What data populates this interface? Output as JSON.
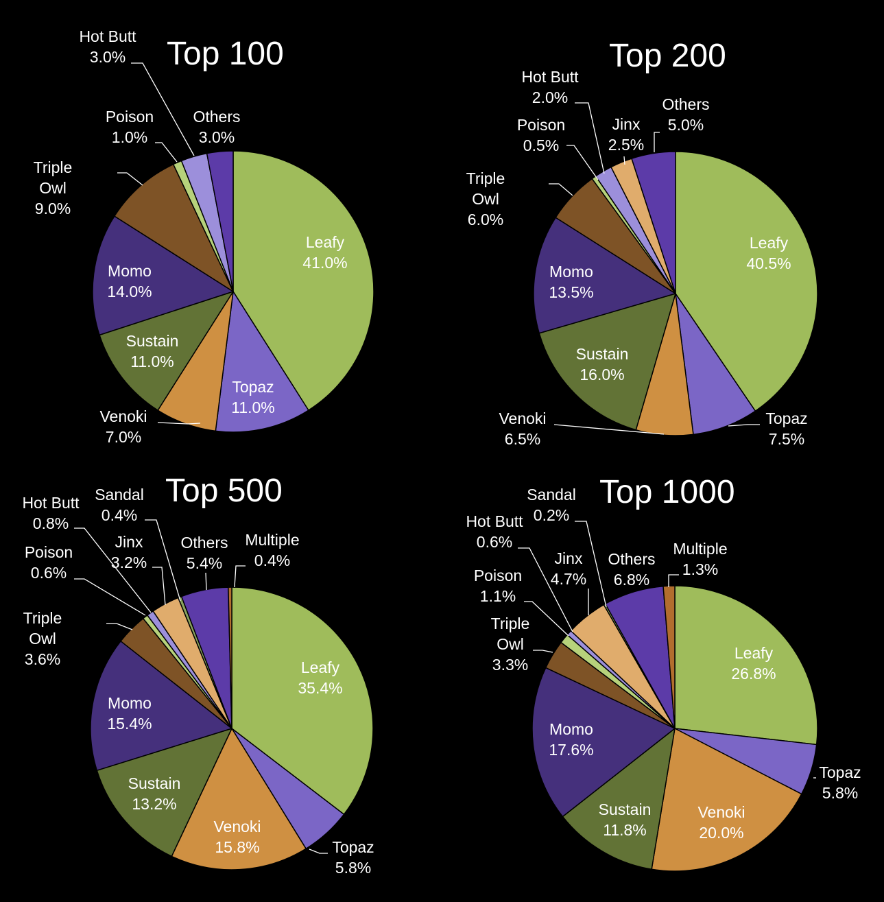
{
  "colors": {
    "Leafy": "#9fbc5b",
    "Topaz": "#7b66c6",
    "Venoki": "#cf9042",
    "Sustain": "#627336",
    "Momo": "#45307c",
    "Triple Owl": "#7e5326",
    "Poison": "#b7d27b",
    "Hot Butt": "#9c8fdb",
    "Sandal": "#8aa35e",
    "Jinx": "#e0ac6c",
    "Others": "#5c3ba8",
    "Multiple": "#b26e2e"
  },
  "chart_data": [
    {
      "type": "pie",
      "title": "Top 100",
      "slices": [
        {
          "name": "Leafy",
          "value": 41.0,
          "label": "41.0%"
        },
        {
          "name": "Topaz",
          "value": 11.0,
          "label": "11.0%"
        },
        {
          "name": "Venoki",
          "value": 7.0,
          "label": "7.0%"
        },
        {
          "name": "Sustain",
          "value": 11.0,
          "label": "11.0%"
        },
        {
          "name": "Momo",
          "value": 14.0,
          "label": "14.0%"
        },
        {
          "name": "Triple Owl",
          "value": 9.0,
          "label": "9.0%"
        },
        {
          "name": "Poison",
          "value": 1.0,
          "label": "1.0%"
        },
        {
          "name": "Hot Butt",
          "value": 3.0,
          "label": "3.0%"
        },
        {
          "name": "Others",
          "value": 3.0,
          "label": "3.0%"
        }
      ]
    },
    {
      "type": "pie",
      "title": "Top 200",
      "slices": [
        {
          "name": "Leafy",
          "value": 40.5,
          "label": "40.5%"
        },
        {
          "name": "Topaz",
          "value": 7.5,
          "label": "7.5%"
        },
        {
          "name": "Venoki",
          "value": 6.5,
          "label": "6.5%"
        },
        {
          "name": "Sustain",
          "value": 16.0,
          "label": "16.0%"
        },
        {
          "name": "Momo",
          "value": 13.5,
          "label": "13.5%"
        },
        {
          "name": "Triple Owl",
          "value": 6.0,
          "label": "6.0%"
        },
        {
          "name": "Poison",
          "value": 0.5,
          "label": "0.5%"
        },
        {
          "name": "Hot Butt",
          "value": 2.0,
          "label": "2.0%"
        },
        {
          "name": "Jinx",
          "value": 2.5,
          "label": "2.5%"
        },
        {
          "name": "Others",
          "value": 5.0,
          "label": "5.0%"
        }
      ]
    },
    {
      "type": "pie",
      "title": "Top 500",
      "slices": [
        {
          "name": "Leafy",
          "value": 35.4,
          "label": "35.4%"
        },
        {
          "name": "Topaz",
          "value": 5.8,
          "label": "5.8%"
        },
        {
          "name": "Venoki",
          "value": 15.8,
          "label": "15.8%"
        },
        {
          "name": "Sustain",
          "value": 13.2,
          "label": "13.2%"
        },
        {
          "name": "Momo",
          "value": 15.4,
          "label": "15.4%"
        },
        {
          "name": "Triple Owl",
          "value": 3.6,
          "label": "3.6%"
        },
        {
          "name": "Poison",
          "value": 0.6,
          "label": "0.6%"
        },
        {
          "name": "Hot Butt",
          "value": 0.8,
          "label": "0.8%"
        },
        {
          "name": "Jinx",
          "value": 3.2,
          "label": "3.2%"
        },
        {
          "name": "Sandal",
          "value": 0.4,
          "label": "0.4%"
        },
        {
          "name": "Others",
          "value": 5.4,
          "label": "5.4%"
        },
        {
          "name": "Multiple",
          "value": 0.4,
          "label": "0.4%"
        }
      ]
    },
    {
      "type": "pie",
      "title": "Top 1000",
      "slices": [
        {
          "name": "Leafy",
          "value": 26.8,
          "label": "26.8%"
        },
        {
          "name": "Topaz",
          "value": 5.8,
          "label": "5.8%"
        },
        {
          "name": "Venoki",
          "value": 20.0,
          "label": "20.0%"
        },
        {
          "name": "Sustain",
          "value": 11.8,
          "label": "11.8%"
        },
        {
          "name": "Momo",
          "value": 17.6,
          "label": "17.6%"
        },
        {
          "name": "Triple Owl",
          "value": 3.3,
          "label": "3.3%"
        },
        {
          "name": "Poison",
          "value": 1.1,
          "label": "1.1%"
        },
        {
          "name": "Hot Butt",
          "value": 0.6,
          "label": "0.6%"
        },
        {
          "name": "Jinx",
          "value": 4.7,
          "label": "4.7%"
        },
        {
          "name": "Sandal",
          "value": 0.2,
          "label": "0.2%"
        },
        {
          "name": "Others",
          "value": 6.8,
          "label": "6.8%"
        },
        {
          "name": "Multiple",
          "value": 1.3,
          "label": "1.3%"
        }
      ]
    }
  ]
}
